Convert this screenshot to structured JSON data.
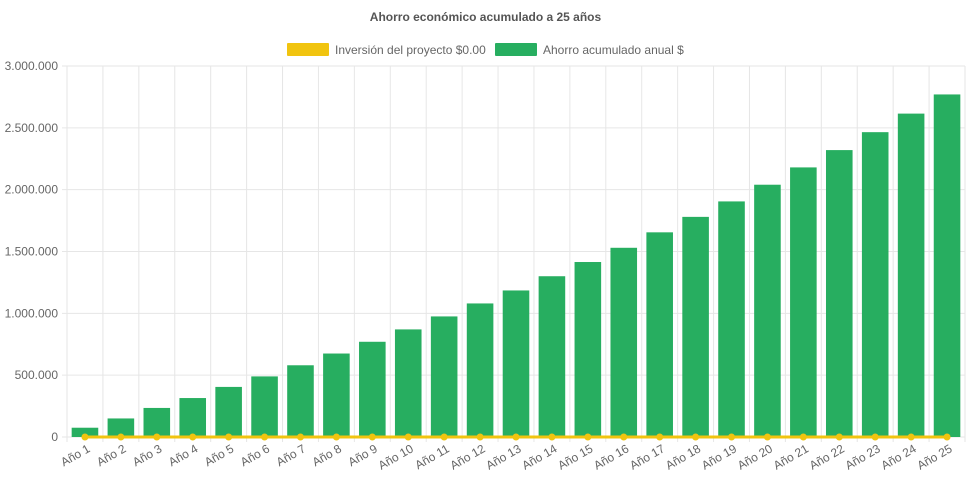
{
  "chart_data": {
    "type": "bar",
    "title": "Ahorro económico acumulado a 25 años",
    "categories": [
      "Año 1",
      "Año 2",
      "Año 3",
      "Año 4",
      "Año 5",
      "Año 6",
      "Año 7",
      "Año 8",
      "Año 9",
      "Año 10",
      "Año 11",
      "Año 12",
      "Año 13",
      "Año 14",
      "Año 15",
      "Año 16",
      "Año 17",
      "Año 18",
      "Año 19",
      "Año 20",
      "Año 21",
      "Año 22",
      "Año 23",
      "Año 24",
      "Año 25"
    ],
    "series": [
      {
        "name": "Inversión del proyecto $0.00",
        "type": "line",
        "color": "#f1c40f",
        "values": [
          0,
          0,
          0,
          0,
          0,
          0,
          0,
          0,
          0,
          0,
          0,
          0,
          0,
          0,
          0,
          0,
          0,
          0,
          0,
          0,
          0,
          0,
          0,
          0,
          0
        ]
      },
      {
        "name": "Ahorro acumulado anual $",
        "type": "bar",
        "color": "#27ae60",
        "values": [
          75000,
          150000,
          235000,
          315000,
          405000,
          490000,
          580000,
          675000,
          770000,
          870000,
          975000,
          1080000,
          1185000,
          1300000,
          1415000,
          1530000,
          1655000,
          1780000,
          1905000,
          2040000,
          2180000,
          2320000,
          2465000,
          2615000,
          2770000
        ]
      }
    ],
    "ylim": [
      0,
      3000000
    ],
    "yticks": [
      0,
      500000,
      1000000,
      1500000,
      2000000,
      2500000,
      3000000
    ],
    "ytick_labels": [
      "0",
      "500.000",
      "1.000.000",
      "1.500.000",
      "2.000.000",
      "2.500.000",
      "3.000.000"
    ],
    "xlabel": "",
    "ylabel": "",
    "grid": true,
    "legend_position": "top"
  }
}
